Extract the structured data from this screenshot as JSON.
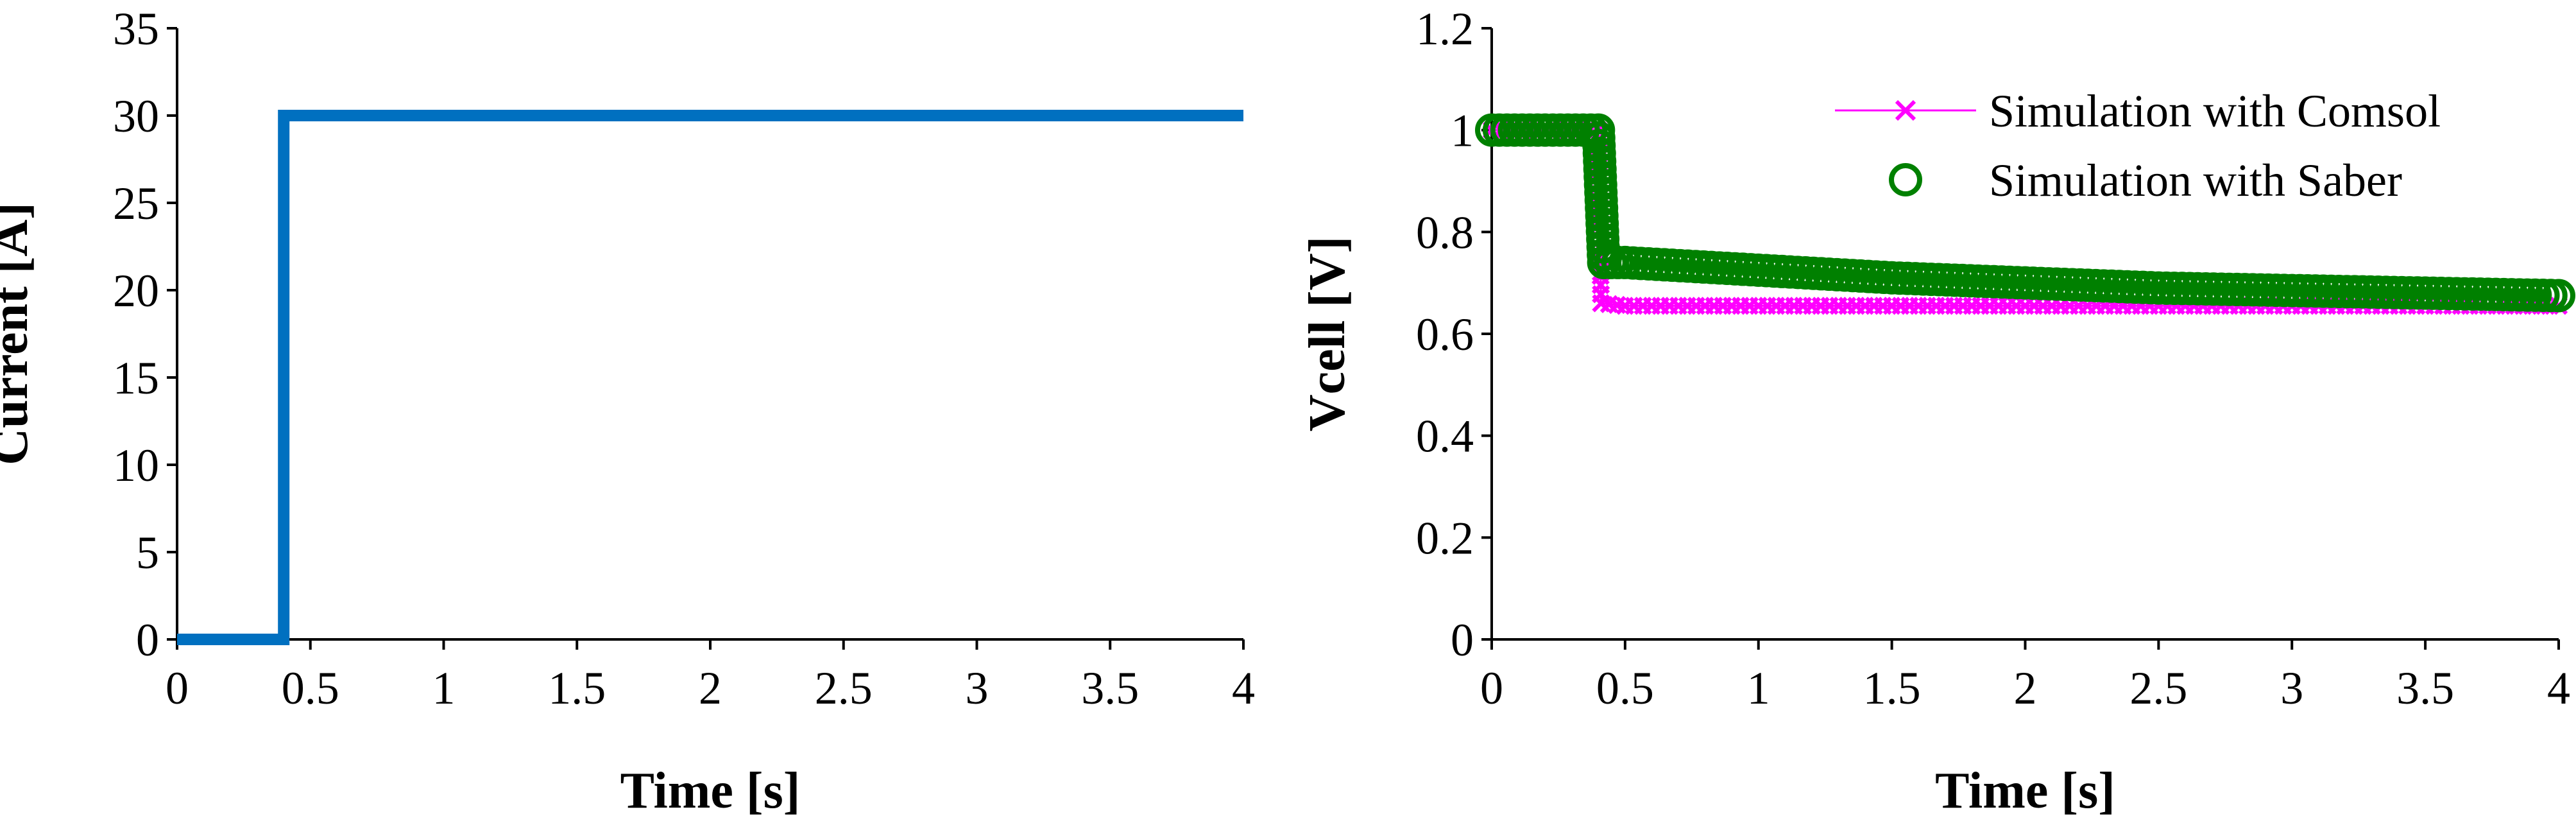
{
  "chart_data": [
    {
      "type": "line",
      "title": "",
      "xlabel": "Time [s]",
      "ylabel": "Current [A]",
      "xlim": [
        0,
        4
      ],
      "ylim": [
        0,
        35
      ],
      "x_ticks": [
        "0",
        "0.5",
        "1",
        "1.5",
        "2",
        "2.5",
        "3",
        "3.5",
        "4"
      ],
      "y_ticks": [
        "0",
        "5",
        "10",
        "15",
        "20",
        "25",
        "30",
        "35"
      ],
      "grid": false,
      "series": [
        {
          "color": "#0070C0",
          "points": [
            [
              0,
              0
            ],
            [
              0.4,
              0
            ],
            [
              0.4,
              30
            ],
            [
              4,
              30
            ]
          ]
        }
      ]
    },
    {
      "type": "line",
      "title": "",
      "xlabel": "Time [s]",
      "ylabel": "Vcell [V]",
      "xlim": [
        0,
        4
      ],
      "ylim": [
        0,
        1.2
      ],
      "x_ticks": [
        "0",
        "0.5",
        "1",
        "1.5",
        "2",
        "2.5",
        "3",
        "3.5",
        "4"
      ],
      "y_ticks": [
        "0",
        "0.2",
        "0.4",
        "0.6",
        "0.8",
        "1",
        "1.2"
      ],
      "grid": false,
      "legend_position": "top-right",
      "series": [
        {
          "name": "Simulation with Comsol",
          "color": "#FF00FF",
          "marker": "x",
          "points": [
            [
              0,
              1.0
            ],
            [
              0.4,
              1.0
            ],
            [
              0.41,
              0.66
            ],
            [
              0.5,
              0.655
            ],
            [
              1,
              0.655
            ],
            [
              2,
              0.655
            ],
            [
              3,
              0.655
            ],
            [
              4,
              0.655
            ]
          ]
        },
        {
          "name": "Simulation with Saber",
          "color": "#008000",
          "marker": "o",
          "points": [
            [
              0,
              1.0
            ],
            [
              0.4,
              1.0
            ],
            [
              0.42,
              0.74
            ],
            [
              0.5,
              0.74
            ],
            [
              1,
              0.725
            ],
            [
              1.5,
              0.71
            ],
            [
              2,
              0.7
            ],
            [
              2.5,
              0.69
            ],
            [
              3,
              0.685
            ],
            [
              3.5,
              0.68
            ],
            [
              4,
              0.675
            ]
          ]
        }
      ]
    }
  ]
}
